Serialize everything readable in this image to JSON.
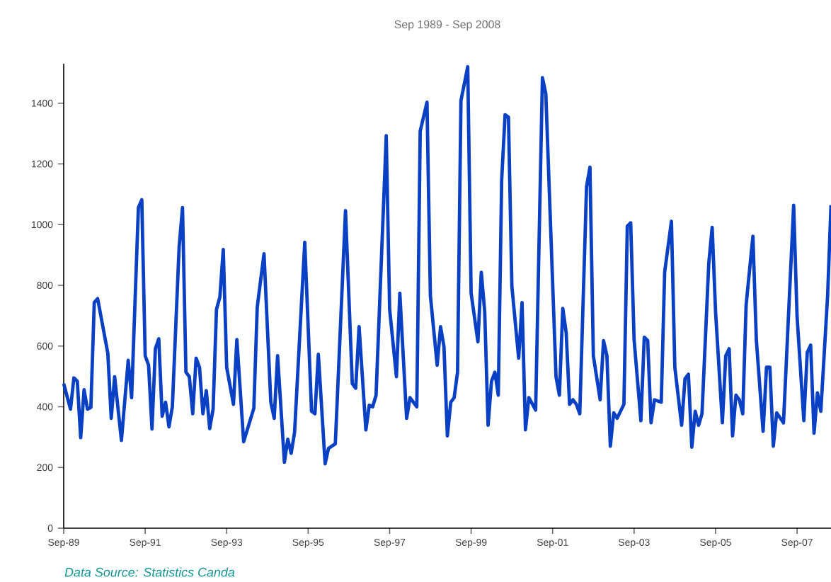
{
  "chart_data": {
    "type": "line",
    "title": "Sep 1989 - Sep 2008",
    "annotations": [
      "*Data Source: Statistics Canda*"
    ],
    "x": [
      "1989-09",
      "1989-11",
      "1989-12",
      "1990-01",
      "1990-02",
      "1990-03",
      "1990-04",
      "1990-05",
      "1990-06",
      "1990-07",
      "1990-10",
      "1990-11",
      "1990-12",
      "1991-02",
      "1991-04",
      "1991-05",
      "1991-07",
      "1991-08",
      "1991-09",
      "1991-10",
      "1991-11",
      "1991-12",
      "1992-01",
      "1992-02",
      "1992-03",
      "1992-04",
      "1992-05",
      "1992-07",
      "1992-08",
      "1992-09",
      "1992-10",
      "1992-11",
      "1992-12",
      "1993-01",
      "1993-02",
      "1993-03",
      "1993-04",
      "1993-05",
      "1993-06",
      "1993-07",
      "1993-08",
      "1993-09",
      "1993-11",
      "1993-12",
      "1994-02",
      "1994-05",
      "1994-06",
      "1994-08",
      "1994-10",
      "1994-11",
      "1994-12",
      "1995-02",
      "1995-03",
      "1995-04",
      "1995-05",
      "1995-08",
      "1995-10",
      "1995-11",
      "1995-12",
      "1996-02",
      "1996-03",
      "1996-05",
      "1996-08",
      "1996-10",
      "1996-11",
      "1996-12",
      "1997-02",
      "1997-03",
      "1997-04",
      "1997-05",
      "1997-08",
      "1997-09",
      "1997-11",
      "1997-12",
      "1998-02",
      "1998-03",
      "1998-05",
      "1998-06",
      "1998-08",
      "1998-09",
      "1998-11",
      "1998-12",
      "1999-01",
      "1999-02",
      "1999-03",
      "1999-04",
      "1999-05",
      "1999-06",
      "1999-08",
      "1999-09",
      "1999-11",
      "1999-12",
      "2000-01",
      "2000-02",
      "2000-03",
      "2000-04",
      "2000-05",
      "2000-06",
      "2000-07",
      "2000-08",
      "2000-09",
      "2000-11",
      "2000-12",
      "2001-01",
      "2001-02",
      "2001-04",
      "2001-06",
      "2001-07",
      "2001-10",
      "2001-11",
      "2001-12",
      "2002-01",
      "2002-02",
      "2002-03",
      "2002-04",
      "2002-05",
      "2002-07",
      "2002-08",
      "2002-09",
      "2002-11",
      "2002-12",
      "2003-01",
      "2003-02",
      "2003-03",
      "2003-04",
      "2003-06",
      "2003-07",
      "2003-08",
      "2003-09",
      "2003-11",
      "2003-12",
      "2004-01",
      "2004-02",
      "2004-03",
      "2004-05",
      "2004-06",
      "2004-08",
      "2004-09",
      "2004-11",
      "2004-12",
      "2005-01",
      "2005-02",
      "2005-03",
      "2005-04",
      "2005-05",
      "2005-07",
      "2005-08",
      "2005-09",
      "2005-11",
      "2005-12",
      "2006-01",
      "2006-02",
      "2006-03",
      "2006-04",
      "2006-05",
      "2006-06",
      "2006-08",
      "2006-09",
      "2006-11",
      "2006-12",
      "2007-01",
      "2007-02",
      "2007-03",
      "2007-05",
      "2007-08",
      "2007-09",
      "2007-11",
      "2007-12",
      "2008-01",
      "2008-02",
      "2008-03",
      "2008-04",
      "2008-06",
      "2008-07"
    ],
    "series": [
      {
        "color": "#0a40c4",
        "values": [
          476,
          392,
          495,
          484,
          298,
          456,
          392,
          398,
          743,
          756,
          576,
          362,
          499,
          289,
          553,
          430,
          1056,
          1082,
          568,
          537,
          327,
          591,
          624,
          369,
          415,
          334,
          400,
          927,
          1056,
          514,
          499,
          377,
          560,
          530,
          377,
          453,
          328,
          392,
          721,
          762,
          918,
          530,
          408,
          621,
          285,
          395,
          728,
          904,
          415,
          362,
          568,
          217,
          293,
          247,
          316,
          942,
          385,
          377,
          573,
          212,
          263,
          278,
          1046,
          476,
          461,
          664,
          324,
          405,
          400,
          438,
          1293,
          721,
          499,
          774,
          362,
          430,
          400,
          1308,
          1403,
          766,
          537,
          664,
          598,
          304,
          415,
          430,
          514,
          1408,
          1520,
          774,
          614,
          843,
          713,
          339,
          484,
          514,
          438,
          1148,
          1362,
          1354,
          797,
          560,
          743,
          324,
          430,
          389,
          1484,
          1431,
          499,
          438,
          724,
          644,
          408,
          423,
          408,
          377,
          1125,
          1189,
          568,
          423,
          618,
          568,
          270,
          380,
          362,
          408,
          995,
          1006,
          621,
          354,
          629,
          618,
          347,
          423,
          415,
          843,
          1011,
          530,
          339,
          492,
          507,
          267,
          385,
          339,
          377,
          873,
          991,
          713,
          347,
          568,
          591,
          304,
          438,
          423,
          377,
          736,
          962,
          621,
          319,
          530,
          530,
          270,
          380,
          347,
          1064,
          698,
          354,
          579,
          603,
          313,
          446,
          385,
          766,
          1064
        ]
      }
    ],
    "xlim": [
      "1989-09",
      "2008-07"
    ],
    "xticks": [
      {
        "value": "1989-09",
        "label": "Sep-89"
      },
      {
        "value": "1991-09",
        "label": "Sep-91"
      },
      {
        "value": "1993-09",
        "label": "Sep-93"
      },
      {
        "value": "1995-09",
        "label": "Sep-95"
      },
      {
        "value": "1997-09",
        "label": "Sep-97"
      },
      {
        "value": "1999-09",
        "label": "Sep-99"
      },
      {
        "value": "2001-09",
        "label": "Sep-01"
      },
      {
        "value": "2003-09",
        "label": "Sep-03"
      },
      {
        "value": "2005-09",
        "label": "Sep-05"
      },
      {
        "value": "2007-09",
        "label": "Sep-07"
      }
    ],
    "ylim": [
      0,
      1530
    ],
    "yticks": [
      0,
      200,
      400,
      600,
      800,
      1000,
      1200,
      1400
    ],
    "grid": false,
    "marker": "none",
    "line_style": "solid"
  }
}
